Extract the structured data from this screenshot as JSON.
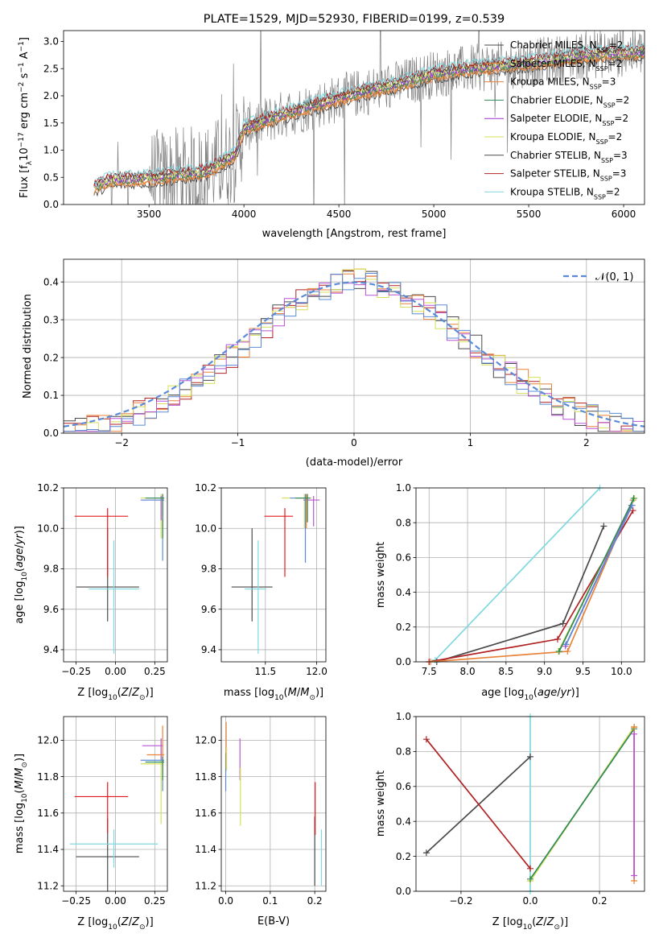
{
  "chart_data": [
    {
      "id": "spectrum",
      "type": "line",
      "title": "PLATE=1529, MJD=52930, FIBERID=0199, z=0.539",
      "xlabel": "wavelength [Angstrom, rest frame]",
      "ylabel": "Flux [f$_\\lambda$10$^{-17}$ erg cm$^{-2}$ s$^{-1}$ A$^{-1}$]",
      "ylabel_parts": {
        "a": "Flux [f",
        "b": "λ",
        "c": "10",
        "d": "−17",
        "e": " erg cm",
        "f": "−2",
        "g": " s",
        "h": "−1",
        "i": " A",
        "j": "−1",
        "k": "]"
      },
      "xlim": [
        3050,
        6110
      ],
      "ylim": [
        0,
        3.2
      ],
      "xticks": [
        3500,
        4000,
        4500,
        5000,
        5500,
        6000
      ],
      "yticks": [
        0.0,
        0.5,
        1.0,
        1.5,
        2.0,
        2.5,
        3.0
      ],
      "legend_position": "upper-right",
      "data_color": "#808080",
      "legend": [
        {
          "pre": "Chabrier MILES, N",
          "sub": "SSP",
          "post": "=2",
          "color": "#4a4a4a"
        },
        {
          "pre": "Salpeter MILES, N",
          "sub": "SSP",
          "post": "=2",
          "color": "#e8833a"
        },
        {
          "pre": "Kroupa MILES, N",
          "sub": "SSP",
          "post": "=3",
          "color": "#e8833a"
        },
        {
          "pre": "Chabrier ELODIE, N",
          "sub": "SSP",
          "post": "=2",
          "color": "#2e8b57"
        },
        {
          "pre": "Salpeter ELODIE, N",
          "sub": "SSP",
          "post": "=2",
          "color": "#9932cc"
        },
        {
          "pre": "Kroupa ELODIE, N",
          "sub": "SSP",
          "post": "=2",
          "color": "#d4e157"
        },
        {
          "pre": "Chabrier STELIB, N",
          "sub": "SSP",
          "post": "=3",
          "color": "#4a4a4a"
        },
        {
          "pre": "Salpeter STELIB, N",
          "sub": "SSP",
          "post": "=3",
          "color": "#b22222"
        },
        {
          "pre": "Kroupa STELIB, N",
          "sub": "SSP",
          "post": "=2",
          "color": "#80d8e0"
        }
      ],
      "continuum_shape": [
        [
          3210,
          0.3
        ],
        [
          3300,
          0.45
        ],
        [
          3500,
          0.48
        ],
        [
          3800,
          0.6
        ],
        [
          3950,
          0.9
        ],
        [
          4000,
          1.4
        ],
        [
          4200,
          1.65
        ],
        [
          4400,
          1.85
        ],
        [
          4600,
          2.05
        ],
        [
          4800,
          2.2
        ],
        [
          5000,
          2.4
        ],
        [
          5200,
          2.5
        ],
        [
          5500,
          2.6
        ],
        [
          5800,
          2.75
        ],
        [
          6100,
          2.8
        ]
      ]
    },
    {
      "id": "residuals",
      "type": "histogram",
      "xlabel": "(data-model)/error",
      "ylabel": "Normed distribution",
      "xlim": [
        -2.5,
        2.5
      ],
      "ylim": [
        0,
        0.46
      ],
      "xticks": [
        -2,
        -1,
        0,
        1,
        2
      ],
      "yticks": [
        0.0,
        0.1,
        0.2,
        0.3,
        0.4
      ],
      "bin_width": 0.1,
      "legend_position": "upper-right",
      "legend_label": "𝒩(0, 1)",
      "gaussian_color": "#5b8bd6",
      "hist_colors": [
        "#4a4a4a",
        "#b22222",
        "#e8833a",
        "#d4e157",
        "#ba55d3",
        "#5b8bd6"
      ]
    },
    {
      "id": "age-vs-Z",
      "type": "errorbar",
      "xlabel": "Z [log$_{10}$(Z/Z$_\\odot$)]",
      "ylabel": "age  [log$_{10}$(age/yr)]",
      "xlim": [
        -0.33,
        0.33
      ],
      "ylim": [
        9.34,
        10.2
      ],
      "xticks": [
        -0.25,
        0.0,
        0.25
      ],
      "yticks": [
        9.4,
        9.6,
        9.8,
        10.0,
        10.2
      ],
      "points": [
        {
          "x": -0.05,
          "y": 9.71,
          "xerr": [
            0.2,
            0.2
          ],
          "yerr": [
            0.17,
            0.29
          ],
          "color": "#4a4a4a"
        },
        {
          "x": -0.05,
          "y": 10.06,
          "xerr": [
            0.21,
            0.13
          ],
          "yerr": [
            0.3,
            0.04
          ],
          "color": "#e31a1c"
        },
        {
          "x": -0.01,
          "y": 9.7,
          "xerr": [
            0.16,
            0.16
          ],
          "yerr": [
            0.32,
            0.24
          ],
          "color": "#80d8e0"
        },
        {
          "x": 0.29,
          "y": 10.15,
          "xerr": [
            0.13,
            0.01
          ],
          "yerr": [
            0.2,
            0.02
          ],
          "color": "#d4e157"
        },
        {
          "x": 0.29,
          "y": 10.14,
          "xerr": [
            0.12,
            0.01
          ],
          "yerr": [
            0.1,
            0.02
          ],
          "color": "#ba55d3"
        },
        {
          "x": 0.3,
          "y": 10.14,
          "xerr": [
            0.14,
            0.01
          ],
          "yerr": [
            0.3,
            0.02
          ],
          "color": "#5b8bd6"
        },
        {
          "x": 0.3,
          "y": 10.15,
          "xerr": [
            0.1,
            0.01
          ],
          "yerr": [
            0.15,
            0.02
          ],
          "color": "#e8833a"
        },
        {
          "x": 0.3,
          "y": 10.15,
          "xerr": [
            0.11,
            0.01
          ],
          "yerr": [
            0.2,
            0.02
          ],
          "color": "#2e8b57"
        }
      ]
    },
    {
      "id": "age-vs-mass",
      "type": "errorbar",
      "xlabel": "mass [log$_{10}$(M/M$_\\odot$)]",
      "ylabel": "",
      "xlim": [
        11.07,
        12.09
      ],
      "ylim": [
        9.34,
        10.2
      ],
      "xticks": [
        11.5,
        12.0
      ],
      "yticks": [
        9.4,
        9.6,
        9.8,
        10.0,
        10.2
      ],
      "points": [
        {
          "x": 11.37,
          "y": 9.71,
          "xerr": [
            0.2,
            0.2
          ],
          "yerr": [
            0.17,
            0.29
          ],
          "color": "#4a4a4a"
        },
        {
          "x": 11.69,
          "y": 10.06,
          "xerr": [
            0.2,
            0.08
          ],
          "yerr": [
            0.3,
            0.04
          ],
          "color": "#e31a1c"
        },
        {
          "x": 11.43,
          "y": 9.7,
          "xerr": [
            0.13,
            0.08
          ],
          "yerr": [
            0.32,
            0.24
          ],
          "color": "#80d8e0"
        },
        {
          "x": 11.88,
          "y": 10.15,
          "xerr": [
            0.22,
            0.07
          ],
          "yerr": [
            0.15,
            0.02
          ],
          "color": "#d4e157"
        },
        {
          "x": 11.97,
          "y": 10.14,
          "xerr": [
            0.1,
            0.06
          ],
          "yerr": [
            0.13,
            0.02
          ],
          "color": "#ba55d3"
        },
        {
          "x": 11.89,
          "y": 10.15,
          "xerr": [
            0.15,
            0.02
          ],
          "yerr": [
            0.32,
            0.02
          ],
          "color": "#5b8bd6"
        },
        {
          "x": 11.9,
          "y": 10.15,
          "xerr": [
            0.1,
            0.04
          ],
          "yerr": [
            0.15,
            0.02
          ],
          "color": "#e8833a"
        },
        {
          "x": 11.91,
          "y": 10.15,
          "xerr": [
            0.12,
            0.03
          ],
          "yerr": [
            0.12,
            0.02
          ],
          "color": "#2e8b57"
        }
      ]
    },
    {
      "id": "massweight-vs-age",
      "type": "line",
      "xlabel": "age  [log$_{10}$(age/yr)]",
      "ylabel": "mass weight",
      "xlim": [
        7.33,
        10.3
      ],
      "ylim": [
        0,
        1.0
      ],
      "xticks": [
        7.5,
        8.0,
        8.5,
        9.0,
        9.5,
        10.0
      ],
      "yticks": [
        0.0,
        0.2,
        0.4,
        0.6,
        0.8,
        1.0
      ],
      "series": [
        {
          "color": "#80d8e0",
          "x": [
            7.58,
            9.72
          ],
          "y": [
            0.01,
            1.0
          ]
        },
        {
          "color": "#4a4a4a",
          "x": [
            7.6,
            9.24,
            9.77
          ],
          "y": [
            0.0,
            0.22,
            0.78
          ]
        },
        {
          "color": "#b22222",
          "x": [
            7.5,
            9.17,
            10.15
          ],
          "y": [
            0.0,
            0.13,
            0.87
          ]
        },
        {
          "color": "#e8833a",
          "x": [
            7.52,
            9.3,
            10.15
          ],
          "y": [
            0.0,
            0.06,
            0.93
          ]
        },
        {
          "color": "#d4e157",
          "x": [
            9.18,
            10.17
          ],
          "y": [
            0.06,
            0.94
          ]
        },
        {
          "color": "#ba55d3",
          "x": [
            9.27,
            10.13
          ],
          "y": [
            0.09,
            0.9
          ]
        },
        {
          "color": "#5b8bd6",
          "x": [
            9.28,
            10.14
          ],
          "y": [
            0.1,
            0.9
          ]
        },
        {
          "color": "#2e8b57",
          "x": [
            9.19,
            10.16
          ],
          "y": [
            0.06,
            0.94
          ]
        }
      ]
    },
    {
      "id": "mass-vs-Z",
      "type": "errorbar",
      "xlabel": "Z [log$_{10}$(Z/Z$_\\odot$)]",
      "ylabel": "mass [log$_{10}$(M/M$_\\odot$)]",
      "xlim": [
        -0.33,
        0.33
      ],
      "ylim": [
        11.17,
        12.13
      ],
      "xticks": [
        -0.25,
        0.0,
        0.25
      ],
      "yticks": [
        11.2,
        11.4,
        11.6,
        11.8,
        12.0
      ],
      "points": [
        {
          "x": -0.05,
          "y": 11.36,
          "xerr": [
            0.2,
            0.2
          ],
          "yerr": [
            0.2,
            0.21
          ],
          "color": "#4a4a4a"
        },
        {
          "x": -0.05,
          "y": 11.69,
          "xerr": [
            0.21,
            0.13
          ],
          "yerr": [
            0.2,
            0.08
          ],
          "color": "#e31a1c"
        },
        {
          "x": -0.01,
          "y": 11.43,
          "xerr": [
            0.28,
            0.28
          ],
          "yerr": [
            0.13,
            0.08
          ],
          "color": "#80d8e0"
        },
        {
          "x": 0.29,
          "y": 11.87,
          "xerr": [
            0.13,
            0.01
          ],
          "yerr": [
            0.33,
            0.08
          ],
          "color": "#d4e157"
        },
        {
          "x": 0.29,
          "y": 11.97,
          "xerr": [
            0.12,
            0.01
          ],
          "yerr": [
            0.08,
            0.04
          ],
          "color": "#ba55d3"
        },
        {
          "x": 0.3,
          "y": 11.89,
          "xerr": [
            0.14,
            0.01
          ],
          "yerr": [
            0.17,
            0.02
          ],
          "color": "#5b8bd6"
        },
        {
          "x": 0.3,
          "y": 11.92,
          "xerr": [
            0.1,
            0.01
          ],
          "yerr": [
            0.08,
            0.16
          ],
          "color": "#e8833a"
        },
        {
          "x": 0.3,
          "y": 11.88,
          "xerr": [
            0.11,
            0.01
          ],
          "yerr": [
            0.1,
            0.03
          ],
          "color": "#2e8b57"
        }
      ]
    },
    {
      "id": "mass-vs-ebv",
      "type": "errorbar",
      "xlabel": "E(B-V)",
      "ylabel": "",
      "xlim": [
        -0.01,
        0.225
      ],
      "ylim": [
        11.17,
        12.13
      ],
      "xticks": [
        0.0,
        0.1,
        0.2
      ],
      "yticks": [
        11.2,
        11.4,
        11.6,
        11.8,
        12.0
      ],
      "points": [
        {
          "x": 0.0,
          "y": 11.8,
          "xerr": [
            0,
            0
          ],
          "yerr": [
            0.08,
            0.13
          ],
          "color": "#5b8bd6"
        },
        {
          "x": 0.001,
          "y": 11.95,
          "xerr": [
            0,
            0
          ],
          "yerr": [
            0.1,
            0.15
          ],
          "color": "#e8833a"
        },
        {
          "x": 0.002,
          "y": 11.88,
          "xerr": [
            0,
            0
          ],
          "yerr": [
            0.05,
            0.08
          ],
          "color": "#d4e157"
        },
        {
          "x": 0.032,
          "y": 11.88,
          "xerr": [
            0,
            0
          ],
          "yerr": [
            0.1,
            0.13
          ],
          "color": "#ba55d3"
        },
        {
          "x": 0.033,
          "y": 11.75,
          "xerr": [
            0,
            0
          ],
          "yerr": [
            0.22,
            0.1
          ],
          "color": "#d4e157"
        },
        {
          "x": 0.2,
          "y": 11.37,
          "xerr": [
            0,
            0
          ],
          "yerr": [
            0.17,
            0.21
          ],
          "color": "#4a4a4a"
        },
        {
          "x": 0.201,
          "y": 11.63,
          "xerr": [
            0,
            0
          ],
          "yerr": [
            0.15,
            0.14
          ],
          "color": "#e31a1c"
        },
        {
          "x": 0.215,
          "y": 11.35,
          "xerr": [
            0,
            0
          ],
          "yerr": [
            0.15,
            0.16
          ],
          "color": "#80d8e0"
        }
      ]
    },
    {
      "id": "massweight-vs-Z",
      "type": "line",
      "xlabel": "Z [log$_{10}$(Z/Z$_\\odot$)]",
      "ylabel": "mass weight",
      "xlim": [
        -0.33,
        0.33
      ],
      "ylim": [
        0,
        1.0
      ],
      "xticks": [
        -0.2,
        0.0,
        0.2
      ],
      "yticks": [
        0.0,
        0.2,
        0.4,
        0.6,
        0.8,
        1.0
      ],
      "series": [
        {
          "color": "#80d8e0",
          "x": [
            0.0,
            0.0
          ],
          "y": [
            0.0,
            1.0
          ]
        },
        {
          "color": "#4a4a4a",
          "x": [
            -0.3,
            0.0
          ],
          "y": [
            0.22,
            0.77
          ]
        },
        {
          "color": "#b22222",
          "x": [
            -0.3,
            0.0
          ],
          "y": [
            0.87,
            0.13
          ]
        },
        {
          "color": "#e8833a",
          "x": [
            0.0,
            0.3
          ],
          "y": [
            0.06,
            0.94
          ]
        },
        {
          "color": "#d4e157",
          "x": [
            0.0,
            0.3
          ],
          "y": [
            0.06,
            0.94
          ]
        },
        {
          "color": "#2e8b57",
          "x": [
            0.0,
            0.3
          ],
          "y": [
            0.07,
            0.93
          ]
        },
        {
          "color": "#e8833a",
          "x": [
            0.3,
            0.3
          ],
          "y": [
            0.06,
            0.94
          ]
        },
        {
          "color": "#ba55d3",
          "x": [
            0.3,
            0.3
          ],
          "y": [
            0.09,
            0.9
          ]
        }
      ]
    }
  ],
  "mathtext": {
    "log10": "log",
    "ten": "10",
    "Z_sym": "Z",
    "M_sym": "M",
    "sun": "⊙",
    "age_sym": "age",
    "yr": "yr"
  },
  "tick_labels": {
    "spectrum_x": [
      "3500",
      "4000",
      "4500",
      "5000",
      "5500",
      "6000"
    ],
    "spectrum_y": [
      "0.0",
      "0.5",
      "1.0",
      "1.5",
      "2.0",
      "2.5",
      "3.0"
    ],
    "resid_x": [
      "−2",
      "−1",
      "0",
      "1",
      "2"
    ],
    "resid_y": [
      "0.0",
      "0.1",
      "0.2",
      "0.3",
      "0.4"
    ],
    "z3_x": [
      "−0.25",
      "0.00",
      "0.25"
    ],
    "age_y": [
      "9.4",
      "9.6",
      "9.8",
      "10.0",
      "10.2"
    ],
    "mass_x": [
      "11.5",
      "12.0"
    ],
    "agemw_x": [
      "7.5",
      "8.0",
      "8.5",
      "9.0",
      "9.5",
      "10.0"
    ],
    "mw_y": [
      "0.0",
      "0.2",
      "0.4",
      "0.6",
      "0.8",
      "1.0"
    ],
    "mass_y": [
      "11.2",
      "11.4",
      "11.6",
      "11.8",
      "12.0"
    ],
    "ebv_x": [
      "0.0",
      "0.1",
      "0.2"
    ],
    "zmw_x": [
      "−0.2",
      "0.0",
      "0.2"
    ]
  }
}
